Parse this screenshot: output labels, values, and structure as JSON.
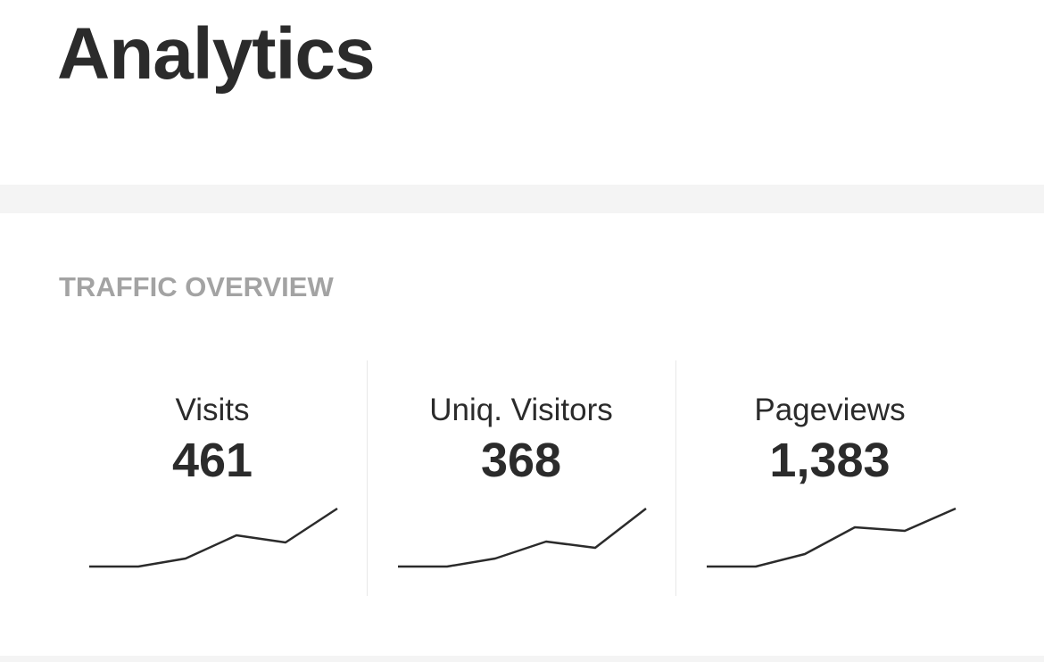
{
  "header": {
    "title": "Analytics"
  },
  "section": {
    "title": "TRAFFIC OVERVIEW",
    "metrics": [
      {
        "label": "Visits",
        "value": "461"
      },
      {
        "label": "Uniq. Visitors",
        "value": "368"
      },
      {
        "label": "Pageviews",
        "value": "1,383"
      }
    ]
  }
}
